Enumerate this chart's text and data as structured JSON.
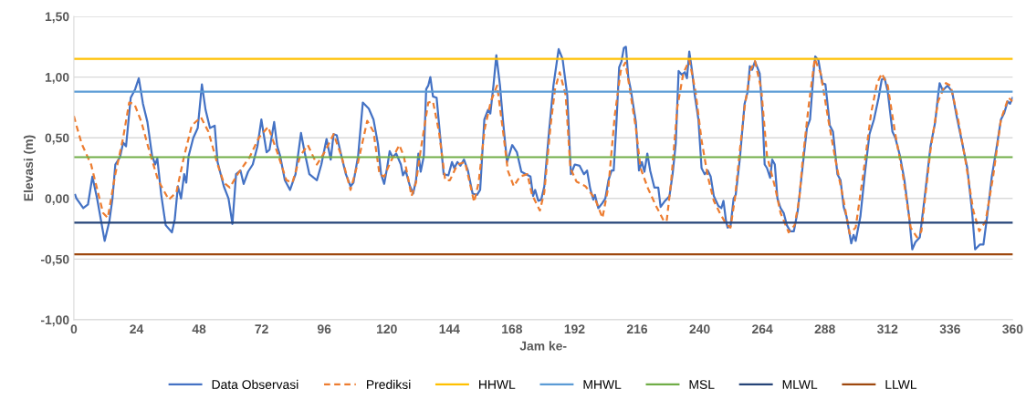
{
  "chart_data": {
    "type": "line",
    "xlabel": "Jam ke-",
    "ylabel": "Elevasi (m)",
    "xlim": [
      0,
      360
    ],
    "xticks": [
      0,
      24,
      48,
      72,
      96,
      120,
      144,
      168,
      192,
      216,
      240,
      264,
      288,
      312,
      336,
      360
    ],
    "ylim": [
      -1,
      1.5
    ],
    "yticks": [
      {
        "value": -1,
        "label": "-1,00"
      },
      {
        "value": -0.5,
        "label": "-0,50"
      },
      {
        "value": 0,
        "label": "0,00"
      },
      {
        "value": 0.5,
        "label": "0,50"
      },
      {
        "value": 1,
        "label": "1,00"
      },
      {
        "value": 1.5,
        "label": "1,50"
      }
    ],
    "grid": "y",
    "legend": "bottom",
    "marker": "none",
    "series": [
      {
        "name": "Data Observasi",
        "color": "#4472c4",
        "line_style": "solid",
        "x": [
          0.5,
          1,
          3.6,
          5.4,
          7.1,
          8.9,
          11.8,
          13.6,
          14.8,
          15.9,
          17.7,
          18.9,
          20,
          21.8,
          23.5,
          24.9,
          26.5,
          28.2,
          30,
          31.2,
          32,
          33.5,
          35.2,
          37.6,
          38.7,
          39.9,
          41.1,
          42.3,
          43.1,
          44,
          45.8,
          47.5,
          49.1,
          50.5,
          52.2,
          54,
          55.1,
          57.5,
          59.3,
          60.8,
          62.2,
          63.9,
          65.1,
          66.8,
          68.6,
          70.4,
          71.9,
          73.9,
          75,
          76.8,
          78,
          79.1,
          80.9,
          82.9,
          85,
          87.1,
          88.5,
          90.3,
          92,
          93.2,
          94.9,
          96.9,
          98.5,
          99.6,
          100.8,
          102.6,
          104.3,
          106.1,
          107.2,
          109,
          110.8,
          113.1,
          114.9,
          116.6,
          117.8,
          119,
          120.1,
          121.1,
          122.2,
          123.6,
          125.4,
          126.2,
          127.2,
          128.9,
          130.1,
          131.2,
          132.1,
          133,
          134.2,
          135.1,
          135.9,
          136.7,
          137.7,
          139.1,
          140.6,
          141.8,
          143.6,
          145,
          145.9,
          147.1,
          148.2,
          149.6,
          151.1,
          152.9,
          154.6,
          155.8,
          157.4,
          158.8,
          159.7,
          160.9,
          162,
          163.4,
          164.6,
          166.1,
          168.1,
          169.9,
          171.6,
          173.4,
          175.1,
          176.1,
          176.9,
          178.1,
          179.2,
          180.4,
          182.2,
          183.9,
          185.9,
          187.4,
          189.2,
          190.6,
          192.1,
          193.9,
          195.6,
          196.8,
          198,
          199.2,
          199.8,
          201.1,
          202.6,
          203.8,
          205,
          206.2,
          207,
          208,
          209.1,
          210,
          210.9,
          211.7,
          212.6,
          213.7,
          215.5,
          216.7,
          217.8,
          218.8,
          219.9,
          221,
          222.6,
          224.1,
          225,
          226.7,
          228.4,
          229.6,
          230.8,
          231.9,
          233.1,
          234.3,
          235.1,
          236,
          237,
          238.1,
          239.5,
          240.7,
          241.9,
          243.1,
          244.2,
          245.4,
          247.1,
          248.3,
          249.1,
          250.1,
          250.7,
          251.8,
          253,
          253.8,
          255.4,
          257.2,
          258.4,
          259.2,
          260.1,
          261.2,
          263,
          264.1,
          264.9,
          265.8,
          267,
          267.8,
          268.8,
          269.8,
          271,
          272.2,
          273.4,
          274.7,
          276.1,
          277.6,
          279.4,
          281.1,
          282.3,
          283.8,
          284.3,
          285.5,
          287,
          288.2,
          289.9,
          291.1,
          292.8,
          294,
          295.2,
          296.3,
          298.1,
          299,
          299.8,
          301.6,
          303.3,
          305.1,
          306.8,
          308.6,
          309.8,
          310.9,
          312.1,
          313.9,
          315,
          316.8,
          318.5,
          320.3,
          321.5,
          322.7,
          324.4,
          326.2,
          328.5,
          330.3,
          331.4,
          332,
          333.2,
          335,
          336.8,
          338.5,
          340.9,
          342.6,
          344.4,
          345.6,
          347.4,
          348.8,
          350.2,
          352,
          353.7,
          355.5,
          356.7,
          358.1,
          359,
          360
        ],
        "values": [
          0.03,
          0.0,
          -0.08,
          -0.05,
          0.18,
          0.0,
          -0.35,
          -0.19,
          0.0,
          0.28,
          0.34,
          0.46,
          0.43,
          0.83,
          0.9,
          0.99,
          0.78,
          0.63,
          0.35,
          0.28,
          0.33,
          0.03,
          -0.22,
          -0.28,
          -0.17,
          0.1,
          0.0,
          0.2,
          0.13,
          0.35,
          0.5,
          0.58,
          0.94,
          0.73,
          0.58,
          0.6,
          0.3,
          0.1,
          0.0,
          -0.21,
          0.2,
          0.23,
          0.12,
          0.22,
          0.28,
          0.43,
          0.65,
          0.38,
          0.4,
          0.63,
          0.43,
          0.35,
          0.15,
          0.07,
          0.2,
          0.54,
          0.38,
          0.2,
          0.17,
          0.15,
          0.28,
          0.49,
          0.32,
          0.53,
          0.52,
          0.35,
          0.2,
          0.1,
          0.13,
          0.35,
          0.79,
          0.74,
          0.65,
          0.45,
          0.2,
          0.12,
          0.25,
          0.39,
          0.34,
          0.37,
          0.28,
          0.19,
          0.23,
          0.1,
          0.04,
          0.15,
          0.37,
          0.22,
          0.35,
          0.9,
          0.93,
          1.0,
          0.84,
          0.83,
          0.48,
          0.2,
          0.19,
          0.3,
          0.25,
          0.3,
          0.27,
          0.32,
          0.23,
          0.04,
          0.03,
          0.07,
          0.65,
          0.73,
          0.7,
          0.93,
          1.18,
          0.93,
          0.63,
          0.3,
          0.44,
          0.38,
          0.22,
          0.2,
          0.18,
          0.02,
          0.07,
          -0.02,
          -0.01,
          0.1,
          0.55,
          0.93,
          1.23,
          1.15,
          0.85,
          0.2,
          0.28,
          0.27,
          0.2,
          0.23,
          0.08,
          -0.01,
          0.03,
          -0.08,
          -0.04,
          0.0,
          0.15,
          0.23,
          0.23,
          0.6,
          1.08,
          1.13,
          1.24,
          1.25,
          1.0,
          0.88,
          0.63,
          0.23,
          0.3,
          0.22,
          0.37,
          0.23,
          0.09,
          0.09,
          -0.07,
          -0.02,
          0.02,
          0.2,
          0.45,
          1.05,
          1.02,
          1.04,
          0.99,
          1.21,
          1.06,
          0.85,
          0.65,
          0.25,
          0.2,
          0.23,
          0.18,
          0.02,
          -0.06,
          -0.08,
          -0.02,
          -0.19,
          -0.24,
          -0.23,
          0.0,
          0.03,
          0.33,
          0.78,
          0.88,
          1.09,
          1.06,
          1.13,
          1.03,
          0.68,
          0.28,
          0.25,
          0.17,
          0.32,
          0.28,
          0.0,
          -0.08,
          -0.12,
          -0.22,
          -0.27,
          -0.27,
          -0.1,
          0.25,
          0.58,
          0.65,
          1.08,
          1.17,
          1.14,
          0.95,
          0.94,
          0.6,
          0.55,
          0.2,
          0.15,
          -0.07,
          -0.15,
          -0.37,
          -0.3,
          -0.35,
          -0.15,
          0.2,
          0.53,
          0.65,
          0.83,
          0.98,
          0.99,
          0.88,
          0.55,
          0.5,
          0.35,
          0.15,
          -0.15,
          -0.42,
          -0.36,
          -0.32,
          0.0,
          0.43,
          0.63,
          0.85,
          0.95,
          0.89,
          0.93,
          0.88,
          0.68,
          0.43,
          0.25,
          -0.1,
          -0.42,
          -0.38,
          -0.38,
          -0.15,
          0.18,
          0.4,
          0.65,
          0.7,
          0.8,
          0.78,
          0.83
        ]
      },
      {
        "name": "Prediksi",
        "color": "#ed7d31",
        "line_style": "dashed",
        "x": [
          0,
          1,
          3,
          6.6,
          8.9,
          11.2,
          13,
          15.9,
          18.9,
          21.2,
          23.2,
          25.9,
          28.8,
          32.3,
          36.4,
          39.3,
          42.3,
          45.2,
          48.7,
          51.6,
          55.1,
          57.5,
          59.8,
          62.8,
          67.4,
          70.9,
          74.5,
          78,
          81.5,
          83.8,
          86.8,
          89.7,
          93.2,
          96.1,
          99.6,
          102.6,
          106.1,
          109,
          112.5,
          114.9,
          117.2,
          119,
          121.4,
          124.8,
          126.5,
          129.5,
          131.2,
          133,
          135.9,
          137.7,
          140,
          142.4,
          144.2,
          147.1,
          150,
          153.5,
          155.2,
          157.6,
          159.9,
          162.3,
          164.6,
          166.4,
          168.7,
          171,
          173.9,
          175.7,
          178.7,
          180.4,
          182.8,
          184.5,
          186.3,
          188.6,
          190.4,
          192.7,
          196.2,
          199.8,
          202.7,
          205,
          207.4,
          209.7,
          211.5,
          213.2,
          215.5,
          217.3,
          220.2,
          223.2,
          226.1,
          227.3,
          229,
          231.4,
          233.7,
          236,
          238.4,
          240.7,
          243.1,
          245.4,
          247.7,
          250.1,
          251.8,
          253.5,
          255.4,
          257.2,
          259.5,
          261.2,
          263.6,
          265.8,
          268.8,
          271,
          274.1,
          276.4,
          278.2,
          279.4,
          281.7,
          284.1,
          286.4,
          289.3,
          292.2,
          295.2,
          297.5,
          299.8,
          302.7,
          305.7,
          308,
          309.8,
          312.1,
          315,
          318,
          320.9,
          323.3,
          325,
          328.5,
          331.4,
          334.4,
          336.2,
          339.1,
          342,
          344.9,
          347.2,
          349.6,
          352.5,
          355.5,
          358.4,
          360
        ],
        "values": [
          0.68,
          0.6,
          0.45,
          0.28,
          0.08,
          -0.12,
          -0.16,
          0.2,
          0.5,
          0.79,
          0.78,
          0.63,
          0.4,
          0.15,
          -0.01,
          0.05,
          0.35,
          0.6,
          0.67,
          0.55,
          0.28,
          0.13,
          0.09,
          0.2,
          0.34,
          0.5,
          0.59,
          0.38,
          0.15,
          0.13,
          0.35,
          0.44,
          0.28,
          0.38,
          0.53,
          0.35,
          0.07,
          0.3,
          0.64,
          0.55,
          0.2,
          0.18,
          0.3,
          0.44,
          0.35,
          0.02,
          0.13,
          0.4,
          0.79,
          0.8,
          0.55,
          0.15,
          0.15,
          0.28,
          0.3,
          -0.03,
          0.13,
          0.58,
          0.8,
          0.93,
          0.55,
          0.23,
          0.1,
          0.18,
          0.2,
          0.03,
          -0.1,
          0.05,
          0.6,
          0.9,
          1.04,
          0.85,
          0.25,
          0.14,
          0.1,
          0.0,
          -0.16,
          0.1,
          0.68,
          1.05,
          1.12,
          0.9,
          0.58,
          0.25,
          0.08,
          -0.06,
          -0.18,
          -0.19,
          0.13,
          0.75,
          1.03,
          1.14,
          0.88,
          0.48,
          0.18,
          -0.02,
          -0.12,
          -0.21,
          -0.24,
          0.0,
          0.4,
          0.75,
          1.06,
          1.13,
          0.9,
          0.35,
          0.1,
          -0.12,
          -0.28,
          -0.22,
          0.0,
          0.3,
          0.75,
          1.15,
          1.03,
          0.65,
          0.3,
          -0.02,
          -0.29,
          -0.24,
          0.2,
          0.7,
          0.95,
          1.03,
          0.93,
          0.53,
          0.18,
          -0.24,
          -0.32,
          -0.27,
          0.4,
          0.8,
          0.95,
          0.93,
          0.65,
          0.3,
          -0.1,
          -0.27,
          -0.19,
          0.18,
          0.65,
          0.83,
          0.8
        ]
      },
      {
        "name": "HHWL",
        "color": "#ffc000",
        "line_style": "solid",
        "x": [
          0,
          360
        ],
        "values": [
          1.15,
          1.15
        ]
      },
      {
        "name": "MHWL",
        "color": "#5b9bd5",
        "line_style": "solid",
        "x": [
          0,
          360
        ],
        "values": [
          0.88,
          0.88
        ]
      },
      {
        "name": "MSL",
        "color": "#70ad47",
        "line_style": "solid",
        "x": [
          0,
          360
        ],
        "values": [
          0.34,
          0.34
        ]
      },
      {
        "name": "MLWL",
        "color": "#264478",
        "line_style": "solid",
        "x": [
          0,
          360
        ],
        "values": [
          -0.2,
          -0.2
        ]
      },
      {
        "name": "LLWL",
        "color": "#9e480e",
        "line_style": "solid",
        "x": [
          0,
          360
        ],
        "values": [
          -0.46,
          -0.46
        ]
      }
    ]
  }
}
